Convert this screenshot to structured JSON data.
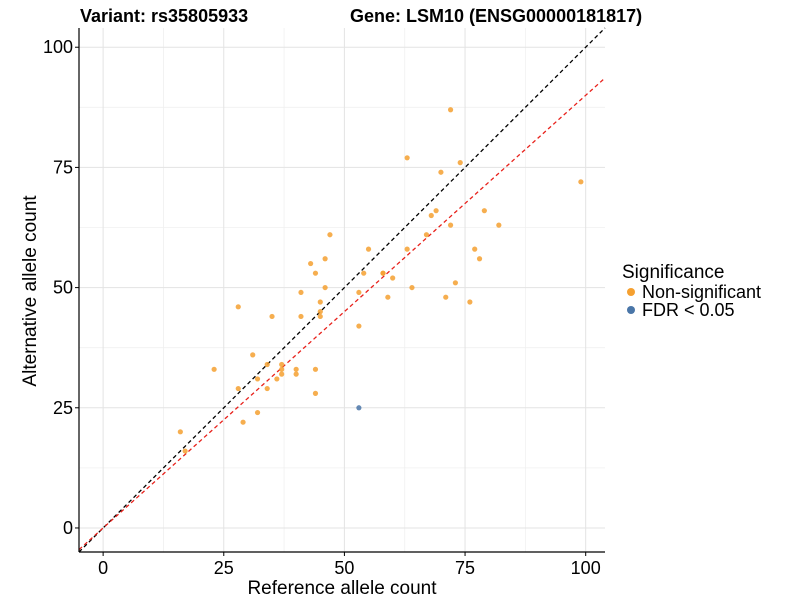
{
  "chart_data": {
    "type": "scatter",
    "title_left": "Variant: rs35805933",
    "title_right": "Gene: LSM10 (ENSG00000181817)",
    "xlabel": "Reference allele count",
    "ylabel": "Alternative allele count",
    "xlim": [
      -5,
      104
    ],
    "ylim": [
      -5,
      104
    ],
    "x_ticks": [
      0,
      25,
      50,
      75,
      100
    ],
    "y_ticks": [
      0,
      25,
      50,
      75,
      100
    ],
    "grid": true,
    "reference_lines": [
      {
        "name": "identity",
        "slope": 1.0,
        "color": "#000000",
        "dash": true
      },
      {
        "name": "expected",
        "slope": 0.9,
        "color": "#e8211b",
        "dash": true
      }
    ],
    "legend": {
      "title": "Significance",
      "placement": "right",
      "entries": [
        {
          "label": "Non-significant",
          "color": "#f5a030"
        },
        {
          "label": "FDR < 0.05",
          "color": "#4a76a8"
        }
      ]
    },
    "series": [
      {
        "color": "#f5a030",
        "points": [
          [
            16,
            20
          ],
          [
            17,
            16
          ],
          [
            23,
            33
          ],
          [
            28,
            46
          ],
          [
            28,
            29
          ],
          [
            29,
            22
          ],
          [
            31,
            36
          ],
          [
            32,
            24
          ],
          [
            32,
            31
          ],
          [
            34,
            29
          ],
          [
            34,
            34
          ],
          [
            35,
            44
          ],
          [
            36,
            31
          ],
          [
            37,
            32
          ],
          [
            37,
            33
          ],
          [
            37,
            34
          ],
          [
            40,
            32
          ],
          [
            40,
            33
          ],
          [
            41,
            49
          ],
          [
            41,
            44
          ],
          [
            43,
            55
          ],
          [
            44,
            53
          ],
          [
            44,
            33
          ],
          [
            44,
            28
          ],
          [
            45,
            47
          ],
          [
            45,
            45
          ],
          [
            45,
            44
          ],
          [
            46,
            56
          ],
          [
            46,
            50
          ],
          [
            47,
            61
          ],
          [
            53,
            49
          ],
          [
            53,
            42
          ],
          [
            54,
            53
          ],
          [
            55,
            58
          ],
          [
            58,
            53
          ],
          [
            58,
            53
          ],
          [
            59,
            48
          ],
          [
            60,
            52
          ],
          [
            63,
            77
          ],
          [
            63,
            58
          ],
          [
            64,
            50
          ],
          [
            67,
            61
          ],
          [
            68,
            65
          ],
          [
            69,
            66
          ],
          [
            70,
            74
          ],
          [
            71,
            48
          ],
          [
            72,
            87
          ],
          [
            72,
            63
          ],
          [
            73,
            51
          ],
          [
            74,
            76
          ],
          [
            76,
            47
          ],
          [
            77,
            58
          ],
          [
            78,
            56
          ],
          [
            79,
            66
          ],
          [
            82,
            63
          ],
          [
            99,
            72
          ]
        ]
      },
      {
        "color": "#4a76a8",
        "points": [
          [
            53,
            25
          ]
        ]
      }
    ]
  }
}
